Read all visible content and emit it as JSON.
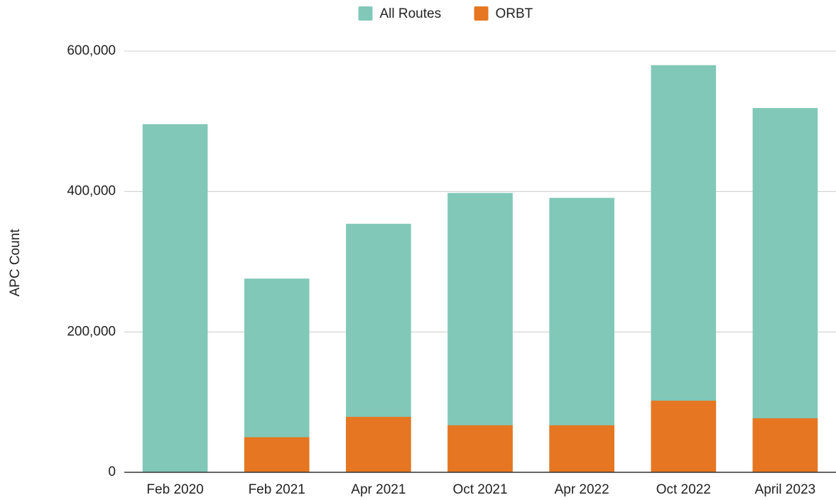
{
  "chart_data": {
    "type": "bar",
    "overlap": true,
    "y_label": "APC Count",
    "categories": [
      "Feb 2020",
      "Feb 2021",
      "Apr 2021",
      "Oct 2021",
      "Apr 2022",
      "Oct 2022",
      "April 2023"
    ],
    "series": [
      {
        "name": "All Routes",
        "color": "#81c8b8",
        "values": [
          496000,
          276000,
          354000,
          398000,
          391000,
          580000,
          519000
        ]
      },
      {
        "name": "ORBT",
        "color": "#e67621",
        "values": [
          null,
          50000,
          79000,
          67000,
          67000,
          102000,
          77000
        ]
      }
    ],
    "ylim": [
      0,
      600000
    ],
    "yticks": [
      0,
      {
        "value": 200000,
        "label": "200,000"
      },
      {
        "value": 400000,
        "label": "400,000"
      },
      {
        "value": 600000,
        "label": "600,000"
      }
    ],
    "grid": true,
    "legend": "top"
  }
}
